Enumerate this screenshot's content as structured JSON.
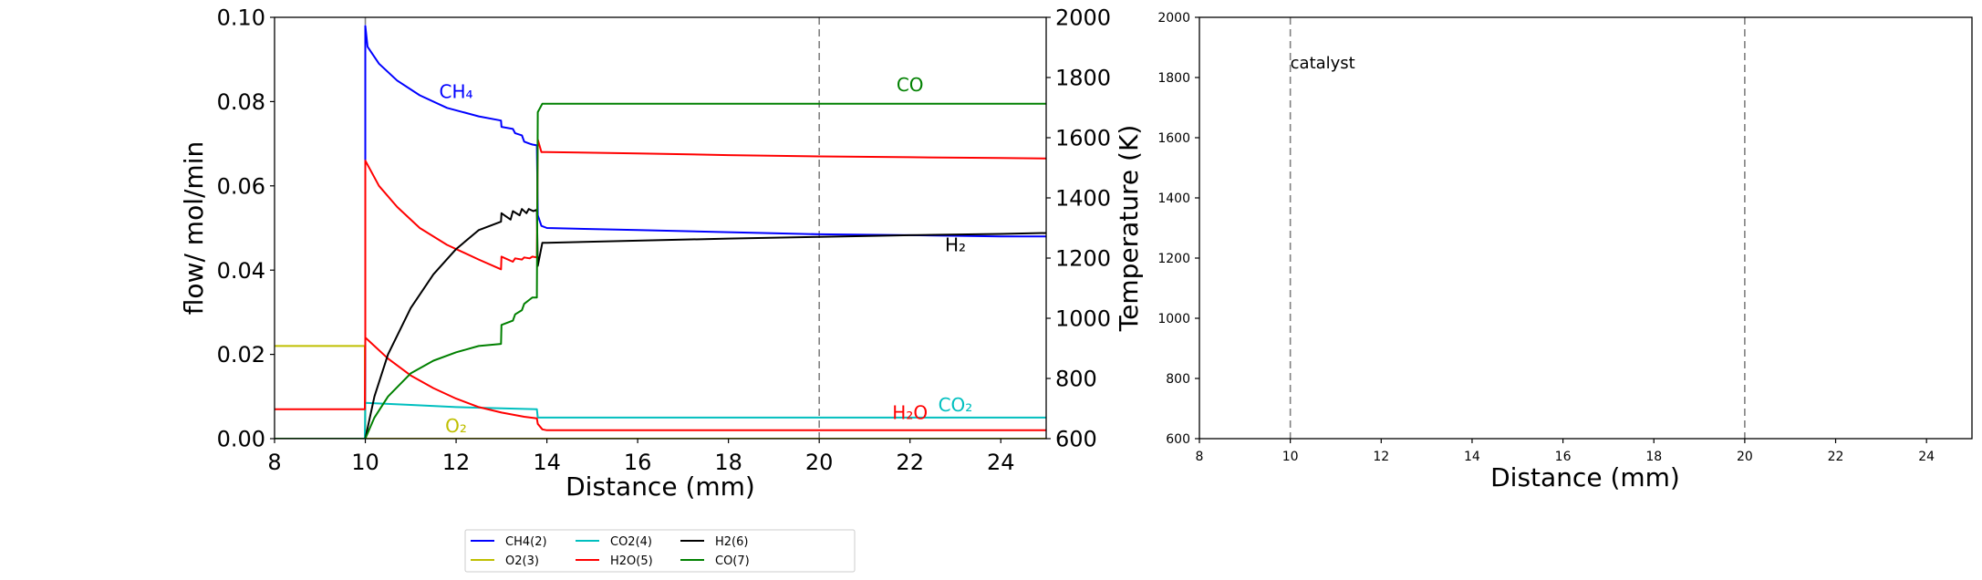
{
  "chart_data": [
    {
      "type": "line",
      "xlabel": "Distance (mm)",
      "ylabel": "flow/ mol/min",
      "y2label": "Temperature (K)",
      "xlim": [
        8,
        25
      ],
      "ylim": [
        0,
        0.1
      ],
      "y2lim": [
        600,
        2000
      ],
      "xticks": [
        "8",
        "10",
        "12",
        "14",
        "16",
        "18",
        "20",
        "22",
        "24"
      ],
      "yticks": [
        "0.00",
        "0.02",
        "0.04",
        "0.06",
        "0.08",
        "0.10"
      ],
      "y2ticks": [
        "600",
        "800",
        "1000",
        "1200",
        "1400",
        "1600",
        "1800",
        "2000"
      ],
      "vlines": [
        10,
        20
      ],
      "grid": false,
      "legend": {
        "placement": "bottom",
        "columns": 4,
        "entries": [
          "CH4(2)",
          "O2(3)",
          "CO2(4)",
          "H2O(5)",
          "H2(6)",
          "CO(7)"
        ]
      },
      "series": [
        {
          "name": "CH4(2)",
          "color": "#0000ff",
          "x": [
            8,
            9.99,
            10,
            10,
            10.05,
            10.3,
            10.7,
            11.2,
            11.8,
            12.5,
            12.99,
            13.0,
            13.25,
            13.3,
            13.45,
            13.5,
            13.62,
            13.68,
            13.78,
            13.8,
            13.88,
            14,
            16,
            18,
            20,
            22,
            24,
            25
          ],
          "y": [
            0,
            0,
            0,
            0.098,
            0.093,
            0.089,
            0.085,
            0.0815,
            0.0785,
            0.0765,
            0.0755,
            0.074,
            0.0735,
            0.0725,
            0.072,
            0.0705,
            0.07,
            0.0698,
            0.0696,
            0.053,
            0.0505,
            0.05,
            0.0495,
            0.049,
            0.0485,
            0.0483,
            0.048,
            0.048
          ]
        },
        {
          "name": "O2(3)",
          "color": "#bfbf00",
          "x": [
            8,
            9.99,
            10,
            25
          ],
          "y": [
            0.022,
            0.022,
            0,
            0
          ]
        },
        {
          "name": "CO2(4)",
          "color": "#00bfbf",
          "x": [
            8,
            9.99,
            10,
            11,
            12,
            13,
            13.78,
            13.8,
            25
          ],
          "y": [
            0,
            0,
            0.0085,
            0.008,
            0.0075,
            0.0072,
            0.007,
            0.005,
            0.005
          ]
        },
        {
          "name": "H2O(5)",
          "color": "#ff0000",
          "x": [
            8,
            9.99,
            10,
            10,
            10.05,
            10.3,
            10.7,
            11.2,
            11.8,
            12.5,
            12.99,
            13.0,
            13.25,
            13.3,
            13.45,
            13.5,
            13.62,
            13.68,
            13.78,
            13.8,
            13.88,
            14,
            16,
            18,
            20,
            22,
            24,
            25
          ],
          "y": [
            0.007,
            0.007,
            0.024,
            0.066,
            0.065,
            0.06,
            0.055,
            0.05,
            0.046,
            0.0425,
            0.0402,
            0.0432,
            0.042,
            0.0428,
            0.0425,
            0.043,
            0.0428,
            0.0432,
            0.043,
            0.071,
            0.068,
            0.068,
            0.0677,
            0.0673,
            0.067,
            0.0668,
            0.0666,
            0.0665
          ]
        },
        {
          "name": "H2O(5)",
          "color": "#ff0000",
          "x": [
            10,
            10.5,
            11,
            11.5,
            12,
            12.5,
            13,
            13.5,
            13.78,
            13.8,
            13.9,
            14,
            16,
            18,
            20,
            25
          ],
          "y": [
            0.024,
            0.019,
            0.015,
            0.012,
            0.0095,
            0.0075,
            0.0062,
            0.0052,
            0.0048,
            0.0035,
            0.0022,
            0.002,
            0.002,
            0.002,
            0.002,
            0.002
          ]
        },
        {
          "name": "H2(6)",
          "color": "#000000",
          "x": [
            8,
            9.99,
            10,
            10.2,
            10.5,
            11,
            11.5,
            12,
            12.5,
            12.99,
            13.0,
            13.2,
            13.25,
            13.4,
            13.45,
            13.55,
            13.6,
            13.7,
            13.78,
            13.8,
            13.9,
            14,
            16,
            18,
            20,
            22,
            24,
            25
          ],
          "y": [
            0,
            0,
            0,
            0.01,
            0.02,
            0.031,
            0.039,
            0.045,
            0.0495,
            0.0515,
            0.0535,
            0.052,
            0.054,
            0.053,
            0.0545,
            0.0535,
            0.0545,
            0.054,
            0.0543,
            0.041,
            0.0465,
            0.0465,
            0.047,
            0.0475,
            0.0479,
            0.0483,
            0.0486,
            0.0488
          ]
        },
        {
          "name": "CO(7)",
          "color": "#008000",
          "x": [
            8,
            9.99,
            10,
            10.2,
            10.5,
            11,
            11.5,
            12,
            12.5,
            12.99,
            13.0,
            13.25,
            13.3,
            13.45,
            13.5,
            13.62,
            13.68,
            13.78,
            13.8,
            13.9,
            14,
            16,
            18,
            20,
            22,
            24,
            25
          ],
          "y": [
            0,
            0,
            0,
            0.005,
            0.01,
            0.0155,
            0.0185,
            0.0205,
            0.022,
            0.0225,
            0.027,
            0.028,
            0.0295,
            0.0305,
            0.032,
            0.033,
            0.0335,
            0.0335,
            0.0775,
            0.0795,
            0.0795,
            0.0795,
            0.0795,
            0.0795,
            0.0795,
            0.0795,
            0.0795
          ]
        }
      ],
      "annotations": [
        {
          "text": "CH₄",
          "x": 12.0,
          "y": 0.0808,
          "color": "#0000ff"
        },
        {
          "text": "CO",
          "x": 22.0,
          "y": 0.0825,
          "color": "#008000"
        },
        {
          "text": "H₂",
          "x": 23.0,
          "y": 0.0445,
          "color": "#000000"
        },
        {
          "text": "H₂O",
          "x": 22.0,
          "y": 0.0047,
          "color": "#ff0000"
        },
        {
          "text": "CO₂",
          "x": 23.0,
          "y": 0.0065,
          "color": "#00bfbf"
        },
        {
          "text": "O₂",
          "x": 12.0,
          "y": 0.0015,
          "color": "#bfbf00"
        }
      ]
    },
    {
      "type": "line",
      "xlabel": "Distance (mm)",
      "ylabel": "",
      "xlim": [
        8,
        25
      ],
      "ylim": [
        600,
        2000
      ],
      "xticks": [
        "8",
        "10",
        "12",
        "14",
        "16",
        "18",
        "20",
        "22",
        "24"
      ],
      "yticks": [
        "600",
        "800",
        "1000",
        "1200",
        "1400",
        "1600",
        "1800",
        "2000"
      ],
      "vlines": [
        10,
        20
      ],
      "grid": false,
      "series": [],
      "annotations": [
        {
          "text": "catalyst",
          "x": 10.0,
          "y": 1830,
          "color": "#000000"
        }
      ]
    }
  ]
}
